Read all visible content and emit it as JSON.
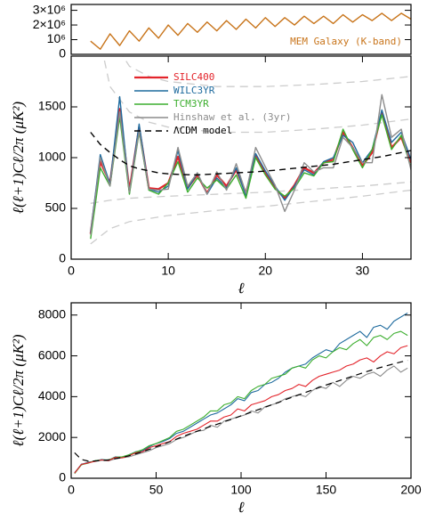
{
  "chart_data": [
    {
      "type": "line",
      "x": [
        2,
        3,
        4,
        5,
        6,
        7,
        8,
        9,
        10,
        11,
        12,
        13,
        14,
        15,
        16,
        17,
        18,
        19,
        20,
        21,
        22,
        23,
        24,
        25,
        26,
        27,
        28,
        29,
        30,
        31,
        32,
        33,
        34,
        35
      ],
      "series": [
        {
          "name": "MEM Galaxy (K-band)",
          "color": "#c8741a",
          "values": [
            900000,
            350000,
            1400000,
            600000,
            1600000,
            900000,
            1800000,
            1100000,
            2000000,
            1300000,
            2100000,
            1500000,
            2200000,
            1600000,
            2300000,
            1700000,
            2400000,
            1800000,
            2500000,
            1900000,
            2500000,
            2000000,
            2600000,
            2100000,
            2600000,
            2100000,
            2700000,
            2200000,
            2700000,
            2300000,
            2800000,
            2300000,
            2800000,
            2400000
          ]
        }
      ],
      "xlim": [
        0,
        35
      ],
      "ylim": [
        0,
        3400000
      ],
      "yticks": [
        0,
        {
          "value": 1000000,
          "label": "10⁶"
        },
        {
          "value": 2000000,
          "label": "2×10⁶"
        },
        {
          "value": 3000000,
          "label": "3×10⁶"
        }
      ],
      "legend": "lower right"
    },
    {
      "type": "line",
      "x": [
        2,
        3,
        4,
        5,
        6,
        7,
        8,
        9,
        10,
        11,
        12,
        13,
        14,
        15,
        16,
        17,
        18,
        19,
        20,
        21,
        22,
        23,
        24,
        25,
        26,
        27,
        28,
        29,
        30,
        31,
        32,
        33,
        34,
        35
      ],
      "series": [
        {
          "name": "SILC400",
          "color": "#e3242b",
          "width": 2.2,
          "values": [
            250,
            960,
            750,
            1480,
            680,
            1300,
            700,
            690,
            750,
            1010,
            700,
            830,
            650,
            830,
            720,
            880,
            650,
            1020,
            850,
            700,
            600,
            730,
            900,
            850,
            950,
            980,
            1250,
            1100,
            920,
            1050,
            1450,
            1100,
            1200,
            950
          ]
        },
        {
          "name": "WILC3YR",
          "color": "#1f6b9e",
          "width": 1.4,
          "values": [
            260,
            1030,
            740,
            1600,
            650,
            1330,
            690,
            660,
            720,
            1070,
            690,
            850,
            640,
            800,
            700,
            900,
            620,
            1040,
            870,
            720,
            580,
            720,
            880,
            830,
            960,
            1000,
            1220,
            1150,
            950,
            1080,
            1470,
            1150,
            1250,
            980
          ]
        },
        {
          "name": "TCM3YR",
          "color": "#3cae2e",
          "width": 1.4,
          "values": [
            200,
            900,
            720,
            1400,
            640,
            1250,
            680,
            640,
            750,
            960,
            660,
            800,
            700,
            780,
            690,
            830,
            600,
            1000,
            830,
            690,
            620,
            700,
            850,
            820,
            950,
            960,
            1280,
            1080,
            900,
            1080,
            1420,
            1080,
            1220,
            900
          ]
        },
        {
          "name": "Hinshaw et al. (3yr)",
          "color": "#8c8c8c",
          "width": 1.4,
          "values": [
            240,
            1000,
            720,
            1450,
            660,
            1260,
            690,
            680,
            690,
            1100,
            720,
            850,
            640,
            860,
            680,
            940,
            650,
            1100,
            910,
            730,
            470,
            680,
            950,
            860,
            900,
            900,
            1200,
            1100,
            950,
            950,
            1620,
            1200,
            1280,
            880
          ]
        },
        {
          "name": "ΛCDM model",
          "color": "#000000",
          "width": 1.4,
          "dash": true,
          "values": [
            1250,
            1130,
            1050,
            980,
            920,
            890,
            870,
            850,
            840,
            835,
            832,
            830,
            835,
            840,
            845,
            850,
            855,
            860,
            868,
            876,
            885,
            895,
            905,
            915,
            925,
            935,
            950,
            965,
            980,
            995,
            1010,
            1030,
            1050,
            1070
          ]
        }
      ],
      "bands": [
        {
          "color": "#cccccc",
          "x": [
            2,
            4,
            6,
            8,
            10,
            15,
            20,
            25,
            30,
            35
          ],
          "values": [
            4000,
            2200,
            1900,
            1800,
            1750,
            1700,
            1700,
            1720,
            1750,
            1800
          ]
        },
        {
          "color": "#cccccc",
          "x": [
            2,
            4,
            6,
            8,
            10,
            15,
            20,
            25,
            30,
            35
          ],
          "values": [
            2600,
            1700,
            1450,
            1350,
            1300,
            1250,
            1250,
            1280,
            1320,
            1380
          ]
        },
        {
          "color": "#cccccc",
          "x": [
            2,
            4,
            6,
            8,
            10,
            15,
            20,
            25,
            30,
            35
          ],
          "values": [
            550,
            580,
            600,
            610,
            620,
            640,
            660,
            690,
            720,
            760
          ]
        },
        {
          "color": "#cccccc",
          "x": [
            2,
            4,
            6,
            8,
            10,
            15,
            20,
            25,
            30,
            35
          ],
          "values": [
            150,
            300,
            370,
            400,
            430,
            480,
            520,
            570,
            620,
            680
          ]
        }
      ],
      "xlim": [
        0,
        35
      ],
      "ylim": [
        0,
        2000
      ],
      "xticks": [
        0,
        10,
        20,
        30
      ],
      "yticks": [
        0,
        500,
        1000,
        1500
      ],
      "xlabel": "ℓ",
      "ylabel": "ℓ(ℓ+1)Cℓ/2π  (μK²)",
      "legend": "upper left"
    },
    {
      "type": "line",
      "x": [
        2,
        6,
        10,
        14,
        18,
        22,
        26,
        30,
        34,
        38,
        42,
        46,
        50,
        54,
        58,
        62,
        66,
        70,
        74,
        78,
        82,
        86,
        90,
        94,
        98,
        102,
        106,
        110,
        114,
        118,
        122,
        126,
        130,
        134,
        138,
        142,
        146,
        150,
        154,
        158,
        162,
        166,
        170,
        174,
        178,
        182,
        186,
        190,
        194,
        198
      ],
      "series": [
        {
          "color": "#8c8c8c",
          "width": 1.1,
          "values": [
            280,
            650,
            800,
            820,
            880,
            850,
            950,
            1000,
            1050,
            1150,
            1250,
            1350,
            1500,
            1600,
            1700,
            1900,
            2000,
            2150,
            2300,
            2350,
            2600,
            2500,
            2800,
            2900,
            3000,
            3100,
            3300,
            3200,
            3500,
            3600,
            3700,
            3900,
            4000,
            4100,
            4000,
            4300,
            4500,
            4400,
            4700,
            4500,
            4800,
            5000,
            4900,
            5100,
            5200,
            5000,
            5300,
            5500,
            5200,
            5400
          ]
        },
        {
          "color": "#1f6b9e",
          "width": 1.1,
          "values": [
            260,
            690,
            760,
            850,
            920,
            880,
            1050,
            1020,
            1150,
            1300,
            1350,
            1550,
            1700,
            1800,
            1950,
            2200,
            2300,
            2500,
            2700,
            2900,
            3100,
            3200,
            3400,
            3600,
            3900,
            3800,
            4200,
            4300,
            4600,
            4700,
            4900,
            5200,
            5400,
            5500,
            5600,
            5900,
            6100,
            6300,
            6200,
            6600,
            6800,
            7000,
            7200,
            6900,
            7400,
            7500,
            7300,
            7700,
            7900,
            8100
          ]
        },
        {
          "color": "#3cae2e",
          "width": 1.1,
          "values": [
            230,
            660,
            740,
            860,
            900,
            900,
            1030,
            1050,
            1150,
            1280,
            1400,
            1600,
            1700,
            1850,
            2000,
            2300,
            2400,
            2600,
            2800,
            3000,
            3300,
            3300,
            3600,
            3700,
            4000,
            3900,
            4300,
            4500,
            4600,
            4900,
            5000,
            5100,
            5400,
            5500,
            5400,
            5800,
            6000,
            5900,
            6200,
            6400,
            6300,
            6600,
            6800,
            6500,
            6900,
            7000,
            6800,
            7100,
            7200,
            7000
          ]
        },
        {
          "color": "#e3242b",
          "width": 1.1,
          "values": [
            250,
            680,
            750,
            830,
            900,
            870,
            1020,
            1000,
            1100,
            1250,
            1300,
            1500,
            1600,
            1700,
            1800,
            2050,
            2200,
            2300,
            2400,
            2600,
            2800,
            2800,
            3000,
            3100,
            3400,
            3300,
            3600,
            3700,
            3800,
            4000,
            4100,
            4300,
            4400,
            4600,
            4500,
            4800,
            5000,
            5100,
            5200,
            5300,
            5500,
            5600,
            5800,
            5900,
            5700,
            6000,
            6200,
            6100,
            6400,
            6500
          ]
        },
        {
          "color": "#000000",
          "width": 1.2,
          "dash": true,
          "values": [
            1250,
            920,
            840,
            850,
            870,
            900,
            960,
            1020,
            1100,
            1200,
            1300,
            1420,
            1540,
            1660,
            1790,
            1920,
            2050,
            2180,
            2300,
            2420,
            2540,
            2650,
            2770,
            2880,
            3000,
            3120,
            3240,
            3360,
            3480,
            3600,
            3720,
            3850,
            3970,
            4090,
            4210,
            4330,
            4450,
            4570,
            4680,
            4790,
            4900,
            5010,
            5120,
            5230,
            5330,
            5430,
            5520,
            5610,
            5700,
            5780
          ]
        }
      ],
      "xlim": [
        0,
        200
      ],
      "ylim": [
        0,
        8600
      ],
      "xticks": [
        0,
        50,
        100,
        150,
        200
      ],
      "yticks": [
        0,
        2000,
        4000,
        6000,
        8000
      ],
      "xlabel": "ℓ",
      "ylabel": "ℓ(ℓ+1)Cℓ/2π  (μK²)"
    }
  ]
}
